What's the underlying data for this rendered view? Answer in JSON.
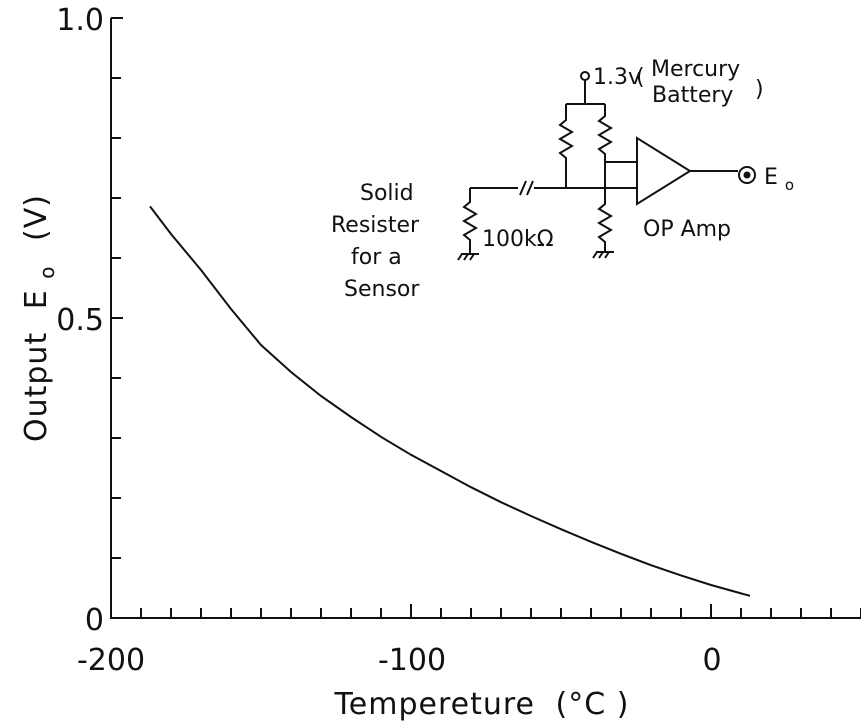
{
  "chart_data": {
    "type": "line",
    "title": "",
    "xlabel": "Tempereture",
    "xlabel_unit": "(°C )",
    "ylabel": "Output",
    "ylabel_symbol": "E",
    "ylabel_subscript": "o",
    "ylabel_unit": "(V)",
    "xlim": [
      -200,
      50
    ],
    "ylim": [
      0,
      1.0
    ],
    "x_tick_labels": [
      "-200",
      "-100",
      "0"
    ],
    "y_tick_labels": [
      "0",
      "0.5",
      "1.0"
    ],
    "grid": false,
    "series": [
      {
        "x": [
          -187,
          -180,
          -170,
          -160,
          -150,
          -140,
          -130,
          -120,
          -110,
          -100,
          -90,
          -80,
          -70,
          -60,
          -50,
          -40,
          -30,
          -20,
          -10,
          0,
          10,
          13
        ],
        "y": [
          0.686,
          0.64,
          0.58,
          0.515,
          0.455,
          0.41,
          0.37,
          0.335,
          0.302,
          0.272,
          0.245,
          0.218,
          0.193,
          0.17,
          0.148,
          0.127,
          0.107,
          0.088,
          0.071,
          0.055,
          0.041,
          0.037
        ]
      }
    ],
    "annotations": {
      "supply_voltage": "1.3v",
      "supply_note_line1": "Mercury",
      "supply_note_line2": "Battery",
      "sensor_line1": "Solid",
      "sensor_line2": "Resister",
      "sensor_line3": "for a",
      "sensor_line4": "Sensor",
      "resistor_value": "100kΩ",
      "amplifier": "OP Amp",
      "output_symbol": "E",
      "output_subscript": "o"
    }
  }
}
